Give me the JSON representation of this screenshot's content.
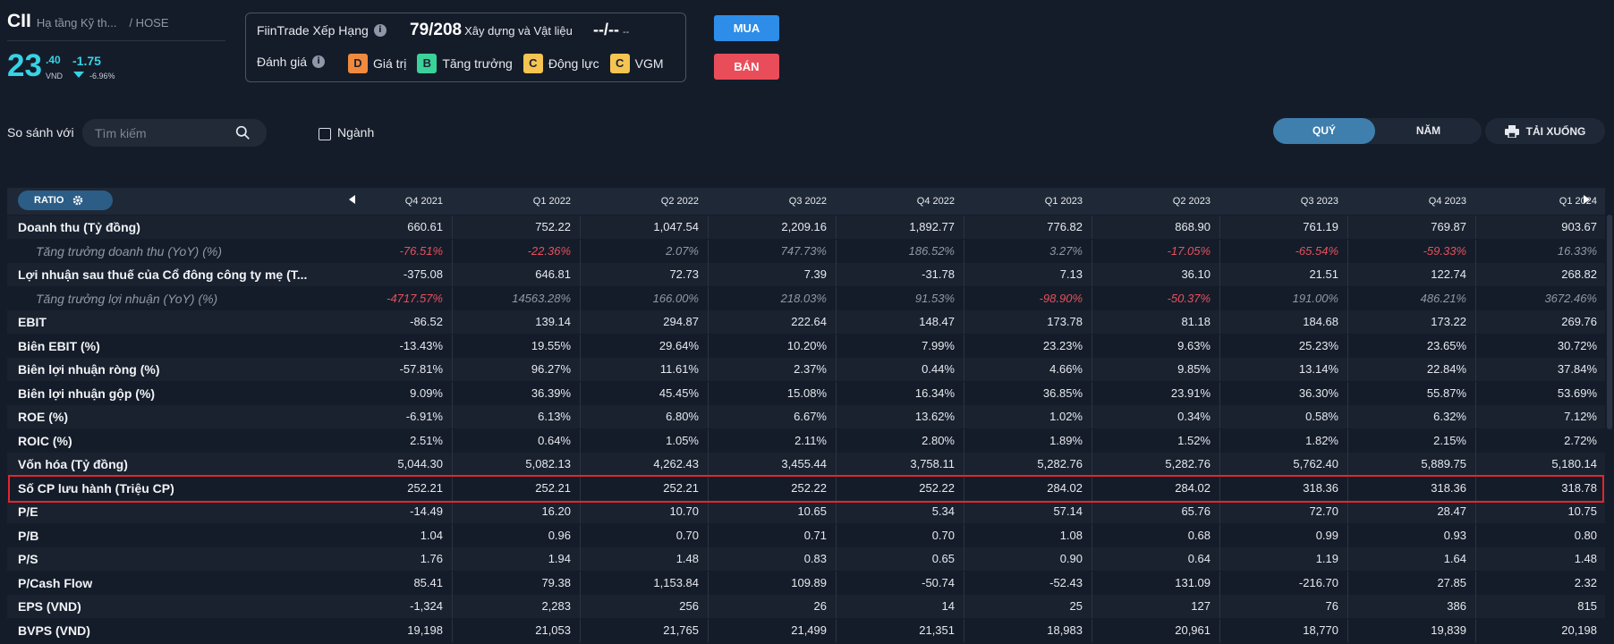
{
  "ticker": {
    "symbol": "CII",
    "industry": "Hạ tầng Kỹ th...",
    "exchange": "/ HOSE",
    "price_int": "23",
    "price_dec": ".40",
    "price_unit": "VND",
    "change": "-1.75",
    "change_pct": "-6.96%"
  },
  "rating": {
    "label": "FiinTrade Xếp Hạng",
    "rank": "79/208",
    "rank_sub": "Xây dựng và Vật liệu",
    "dash_big": "--/--",
    "dash_small": "--",
    "eval_label": "Đánh giá",
    "grades": [
      {
        "grade": "D",
        "label": "Giá trị",
        "color": "#f08a3e"
      },
      {
        "grade": "B",
        "label": "Tăng trưởng",
        "color": "#3ad29a"
      },
      {
        "grade": "C",
        "label": "Động lực",
        "color": "#f5c451"
      },
      {
        "grade": "C",
        "label": "VGM",
        "color": "#f5c451"
      }
    ]
  },
  "actions": {
    "buy": "MUA",
    "sell": "BÁN"
  },
  "compare": {
    "label": "So sánh với",
    "search_placeholder": "Tìm kiếm",
    "industry_checkbox": "Ngành"
  },
  "period": {
    "quarter": "QUÝ",
    "year": "NĂM",
    "download": "TẢI XUỐNG"
  },
  "table": {
    "ratio_label": "RATIO",
    "columns": [
      "Q4 2021",
      "Q1 2022",
      "Q2 2022",
      "Q3 2022",
      "Q4 2022",
      "Q1 2023",
      "Q2 2023",
      "Q3 2023",
      "Q4 2023",
      "Q1 2024"
    ],
    "rows": [
      {
        "label": "Doanh thu (Tỷ đồng)",
        "sub": false,
        "values": [
          "660.61",
          "752.22",
          "1,047.54",
          "2,209.16",
          "1,892.77",
          "776.82",
          "868.90",
          "761.19",
          "769.87",
          "903.67"
        ]
      },
      {
        "label": "Tăng trưởng doanh thu (YoY) (%)",
        "sub": true,
        "values": [
          "-76.51%",
          "-22.36%",
          "2.07%",
          "747.73%",
          "186.52%",
          "3.27%",
          "-17.05%",
          "-65.54%",
          "-59.33%",
          "16.33%"
        ]
      },
      {
        "label": "Lợi nhuận sau thuế của Cổ đông công ty mẹ (T...",
        "sub": false,
        "values": [
          "-375.08",
          "646.81",
          "72.73",
          "7.39",
          "-31.78",
          "7.13",
          "36.10",
          "21.51",
          "122.74",
          "268.82"
        ]
      },
      {
        "label": "Tăng trưởng lợi nhuận (YoY) (%)",
        "sub": true,
        "values": [
          "-4717.57%",
          "14563.28%",
          "166.00%",
          "218.03%",
          "91.53%",
          "-98.90%",
          "-50.37%",
          "191.00%",
          "486.21%",
          "3672.46%"
        ]
      },
      {
        "label": "EBIT",
        "sub": false,
        "values": [
          "-86.52",
          "139.14",
          "294.87",
          "222.64",
          "148.47",
          "173.78",
          "81.18",
          "184.68",
          "173.22",
          "269.76"
        ]
      },
      {
        "label": "Biên EBIT (%)",
        "sub": false,
        "values": [
          "-13.43%",
          "19.55%",
          "29.64%",
          "10.20%",
          "7.99%",
          "23.23%",
          "9.63%",
          "25.23%",
          "23.65%",
          "30.72%"
        ]
      },
      {
        "label": "Biên lợi nhuận ròng (%)",
        "sub": false,
        "values": [
          "-57.81%",
          "96.27%",
          "11.61%",
          "2.37%",
          "0.44%",
          "4.66%",
          "9.85%",
          "13.14%",
          "22.84%",
          "37.84%"
        ]
      },
      {
        "label": "Biên lợi nhuận gộp (%)",
        "sub": false,
        "values": [
          "9.09%",
          "36.39%",
          "45.45%",
          "15.08%",
          "16.34%",
          "36.85%",
          "23.91%",
          "36.30%",
          "55.87%",
          "53.69%"
        ]
      },
      {
        "label": "ROE (%)",
        "sub": false,
        "values": [
          "-6.91%",
          "6.13%",
          "6.80%",
          "6.67%",
          "13.62%",
          "1.02%",
          "0.34%",
          "0.58%",
          "6.32%",
          "7.12%"
        ]
      },
      {
        "label": "ROIC (%)",
        "sub": false,
        "values": [
          "2.51%",
          "0.64%",
          "1.05%",
          "2.11%",
          "2.80%",
          "1.89%",
          "1.52%",
          "1.82%",
          "2.15%",
          "2.72%"
        ]
      },
      {
        "label": "Vốn hóa (Tỷ đồng)",
        "sub": false,
        "values": [
          "5,044.30",
          "5,082.13",
          "4,262.43",
          "3,455.44",
          "3,758.11",
          "5,282.76",
          "5,282.76",
          "5,762.40",
          "5,889.75",
          "5,180.14"
        ]
      },
      {
        "label": "Số CP lưu hành (Triệu CP)",
        "sub": false,
        "values": [
          "252.21",
          "252.21",
          "252.21",
          "252.22",
          "252.22",
          "284.02",
          "284.02",
          "318.36",
          "318.36",
          "318.78"
        ]
      },
      {
        "label": "P/E",
        "sub": false,
        "values": [
          "-14.49",
          "16.20",
          "10.70",
          "10.65",
          "5.34",
          "57.14",
          "65.76",
          "72.70",
          "28.47",
          "10.75"
        ]
      },
      {
        "label": "P/B",
        "sub": false,
        "values": [
          "1.04",
          "0.96",
          "0.70",
          "0.71",
          "0.70",
          "1.08",
          "0.68",
          "0.99",
          "0.93",
          "0.80"
        ]
      },
      {
        "label": "P/S",
        "sub": false,
        "values": [
          "1.76",
          "1.94",
          "1.48",
          "0.83",
          "0.65",
          "0.90",
          "0.64",
          "1.19",
          "1.64",
          "1.48"
        ]
      },
      {
        "label": "P/Cash Flow",
        "sub": false,
        "values": [
          "85.41",
          "79.38",
          "1,153.84",
          "109.89",
          "-50.74",
          "-52.43",
          "131.09",
          "-216.70",
          "27.85",
          "2.32"
        ]
      },
      {
        "label": "EPS (VND)",
        "sub": false,
        "values": [
          "-1,324",
          "2,283",
          "256",
          "26",
          "14",
          "25",
          "127",
          "76",
          "386",
          "815"
        ]
      },
      {
        "label": "BVPS (VND)",
        "sub": false,
        "values": [
          "19,198",
          "21,053",
          "21,765",
          "21,499",
          "21,351",
          "18,983",
          "20,961",
          "18,770",
          "19,839",
          "20,198"
        ]
      }
    ]
  },
  "colors": {
    "background": "#151c29",
    "accent_price": "#37d2e6",
    "buy": "#2d8de8",
    "sell": "#ea4d5a",
    "negative": "#e8505d",
    "highlight_border": "#e0262f"
  }
}
